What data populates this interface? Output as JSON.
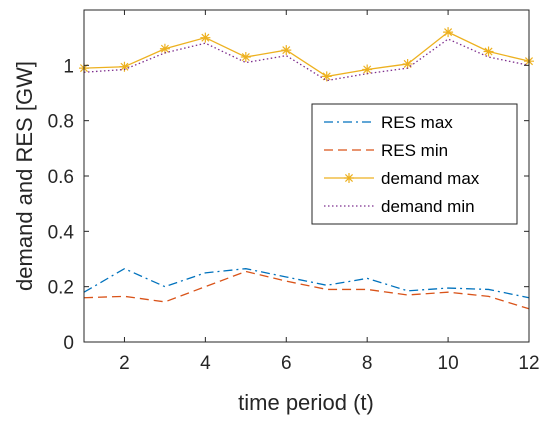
{
  "chart_data": {
    "type": "line",
    "xlabel": "time period (t)",
    "ylabel": "demand and RES [GW]",
    "xlim": [
      1,
      12
    ],
    "ylim": [
      0,
      1.2
    ],
    "xticks": [
      2,
      4,
      6,
      8,
      10,
      12
    ],
    "yticks": [
      0,
      0.2,
      0.4,
      0.6,
      0.8,
      1
    ],
    "x": [
      1,
      2,
      3,
      4,
      5,
      6,
      7,
      8,
      9,
      10,
      11,
      12
    ],
    "grid": false,
    "legend_position": "right",
    "series": [
      {
        "name": "RES max",
        "color": "#0072BD",
        "line_style": "dash-dot",
        "marker": "none",
        "values": [
          0.18,
          0.265,
          0.2,
          0.25,
          0.265,
          0.235,
          0.205,
          0.23,
          0.185,
          0.195,
          0.19,
          0.16
        ]
      },
      {
        "name": "RES min",
        "color": "#D95319",
        "line_style": "dashed",
        "marker": "none",
        "values": [
          0.16,
          0.165,
          0.145,
          0.2,
          0.255,
          0.22,
          0.19,
          0.19,
          0.17,
          0.18,
          0.165,
          0.12
        ]
      },
      {
        "name": "demand max",
        "color": "#EDB120",
        "line_style": "solid",
        "marker": "asterisk",
        "values": [
          0.99,
          0.995,
          1.06,
          1.1,
          1.03,
          1.055,
          0.96,
          0.985,
          1.005,
          1.12,
          1.05,
          1.015
        ]
      },
      {
        "name": "demand min",
        "color": "#7E2F8E",
        "line_style": "dotted",
        "marker": "none",
        "values": [
          0.975,
          0.985,
          1.045,
          1.08,
          1.01,
          1.035,
          0.945,
          0.97,
          0.99,
          1.095,
          1.03,
          1.0
        ]
      }
    ]
  }
}
